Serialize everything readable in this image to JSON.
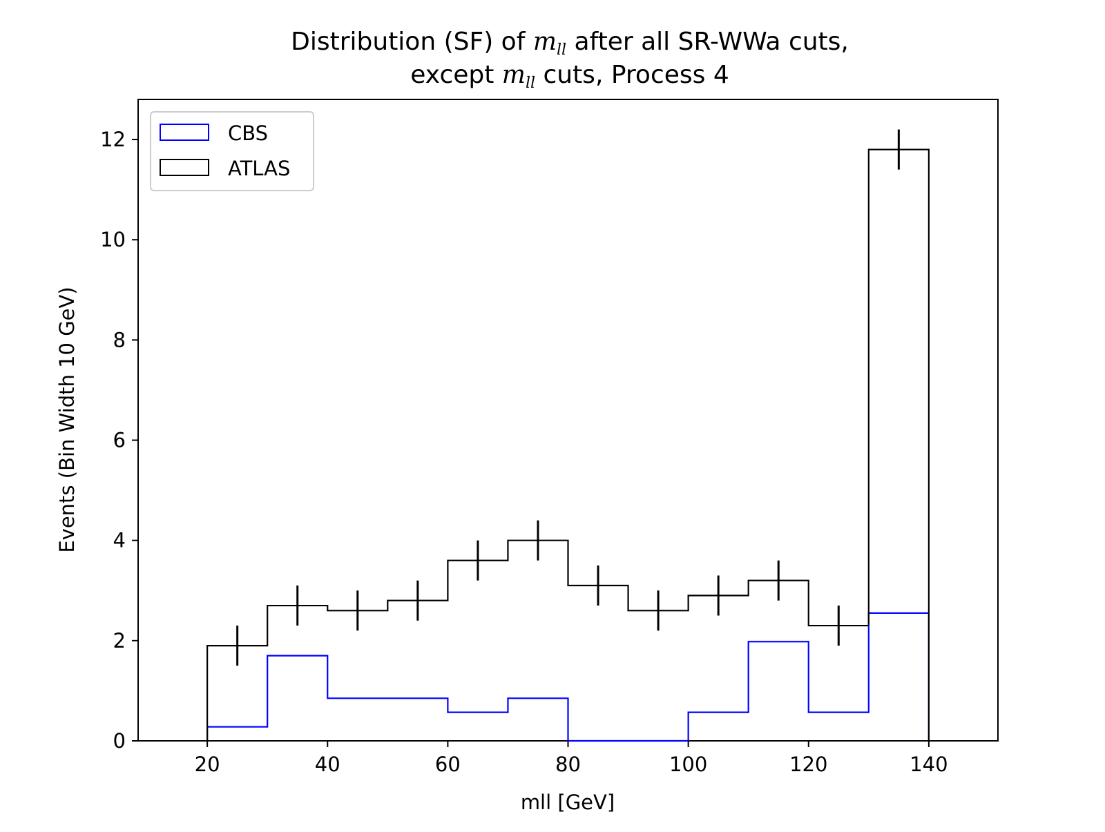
{
  "chart_data": {
    "type": "histogram",
    "title": {
      "line1_prefix": "Distribution (SF) of ",
      "line1_math_main": "m",
      "line1_math_sub": "ll",
      "line1_suffix": " after all SR-WWa cuts,",
      "line2_prefix": "except ",
      "line2_math_main": "m",
      "line2_math_sub": "ll",
      "line2_suffix": " cuts, Process 4"
    },
    "xlabel": "mll [GeV]",
    "ylabel": "Events (Bin Width 10 GeV)",
    "xlim": [
      8.5,
      151.5
    ],
    "ylim": [
      0,
      12.8
    ],
    "x_ticks": [
      20,
      40,
      60,
      80,
      100,
      120,
      140
    ],
    "y_ticks": [
      0,
      2,
      4,
      6,
      8,
      10,
      12
    ],
    "grid": false,
    "legend_position": "top-left",
    "bin_edges": [
      20,
      30,
      40,
      50,
      60,
      70,
      80,
      90,
      100,
      110,
      120,
      130,
      140
    ],
    "series": [
      {
        "name": "CBS",
        "style": "step",
        "color": "#0000ff",
        "values": [
          0.28,
          1.7,
          0.85,
          0.85,
          0.57,
          0.85,
          0.0,
          0.0,
          0.57,
          1.98,
          0.57,
          2.55
        ]
      },
      {
        "name": "ATLAS",
        "style": "step",
        "color": "#000000",
        "values": [
          1.9,
          2.7,
          2.6,
          2.8,
          3.6,
          4.0,
          3.1,
          2.6,
          2.9,
          3.2,
          2.3,
          11.8
        ],
        "error_bar_centers": [
          25,
          35,
          45,
          55,
          65,
          75,
          85,
          95,
          105,
          115,
          125,
          135
        ],
        "errors": [
          0.4,
          0.4,
          0.4,
          0.4,
          0.4,
          0.4,
          0.4,
          0.4,
          0.4,
          0.4,
          0.4,
          0.4
        ]
      }
    ]
  }
}
